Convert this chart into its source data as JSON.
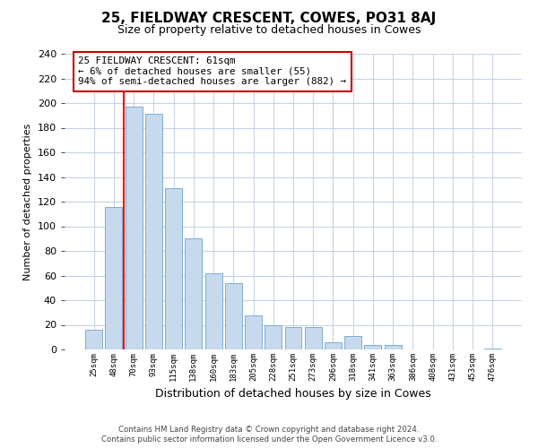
{
  "title": "25, FIELDWAY CRESCENT, COWES, PO31 8AJ",
  "subtitle": "Size of property relative to detached houses in Cowes",
  "xlabel": "Distribution of detached houses by size in Cowes",
  "ylabel": "Number of detached properties",
  "categories": [
    "25sqm",
    "48sqm",
    "70sqm",
    "93sqm",
    "115sqm",
    "138sqm",
    "160sqm",
    "183sqm",
    "205sqm",
    "228sqm",
    "251sqm",
    "273sqm",
    "296sqm",
    "318sqm",
    "341sqm",
    "363sqm",
    "386sqm",
    "408sqm",
    "431sqm",
    "453sqm",
    "476sqm"
  ],
  "values": [
    16,
    116,
    197,
    191,
    131,
    90,
    62,
    54,
    28,
    20,
    18,
    18,
    6,
    11,
    4,
    4,
    0,
    0,
    0,
    0,
    1
  ],
  "bar_color": "#c6d9ed",
  "bar_edge_color": "#7bafd4",
  "redline_x": 1.5,
  "annotation_title": "25 FIELDWAY CRESCENT: 61sqm",
  "annotation_line1": "← 6% of detached houses are smaller (55)",
  "annotation_line2": "94% of semi-detached houses are larger (882) →",
  "ylim": [
    0,
    240
  ],
  "yticks": [
    0,
    20,
    40,
    60,
    80,
    100,
    120,
    140,
    160,
    180,
    200,
    220,
    240
  ],
  "footer1": "Contains HM Land Registry data © Crown copyright and database right 2024.",
  "footer2": "Contains public sector information licensed under the Open Government Licence v3.0.",
  "bg_color": "#ffffff",
  "grid_color": "#c8d4e4",
  "title_fontsize": 11,
  "subtitle_fontsize": 9,
  "annotation_box_color": "#ffffff",
  "annotation_box_edge": "#cc0000"
}
